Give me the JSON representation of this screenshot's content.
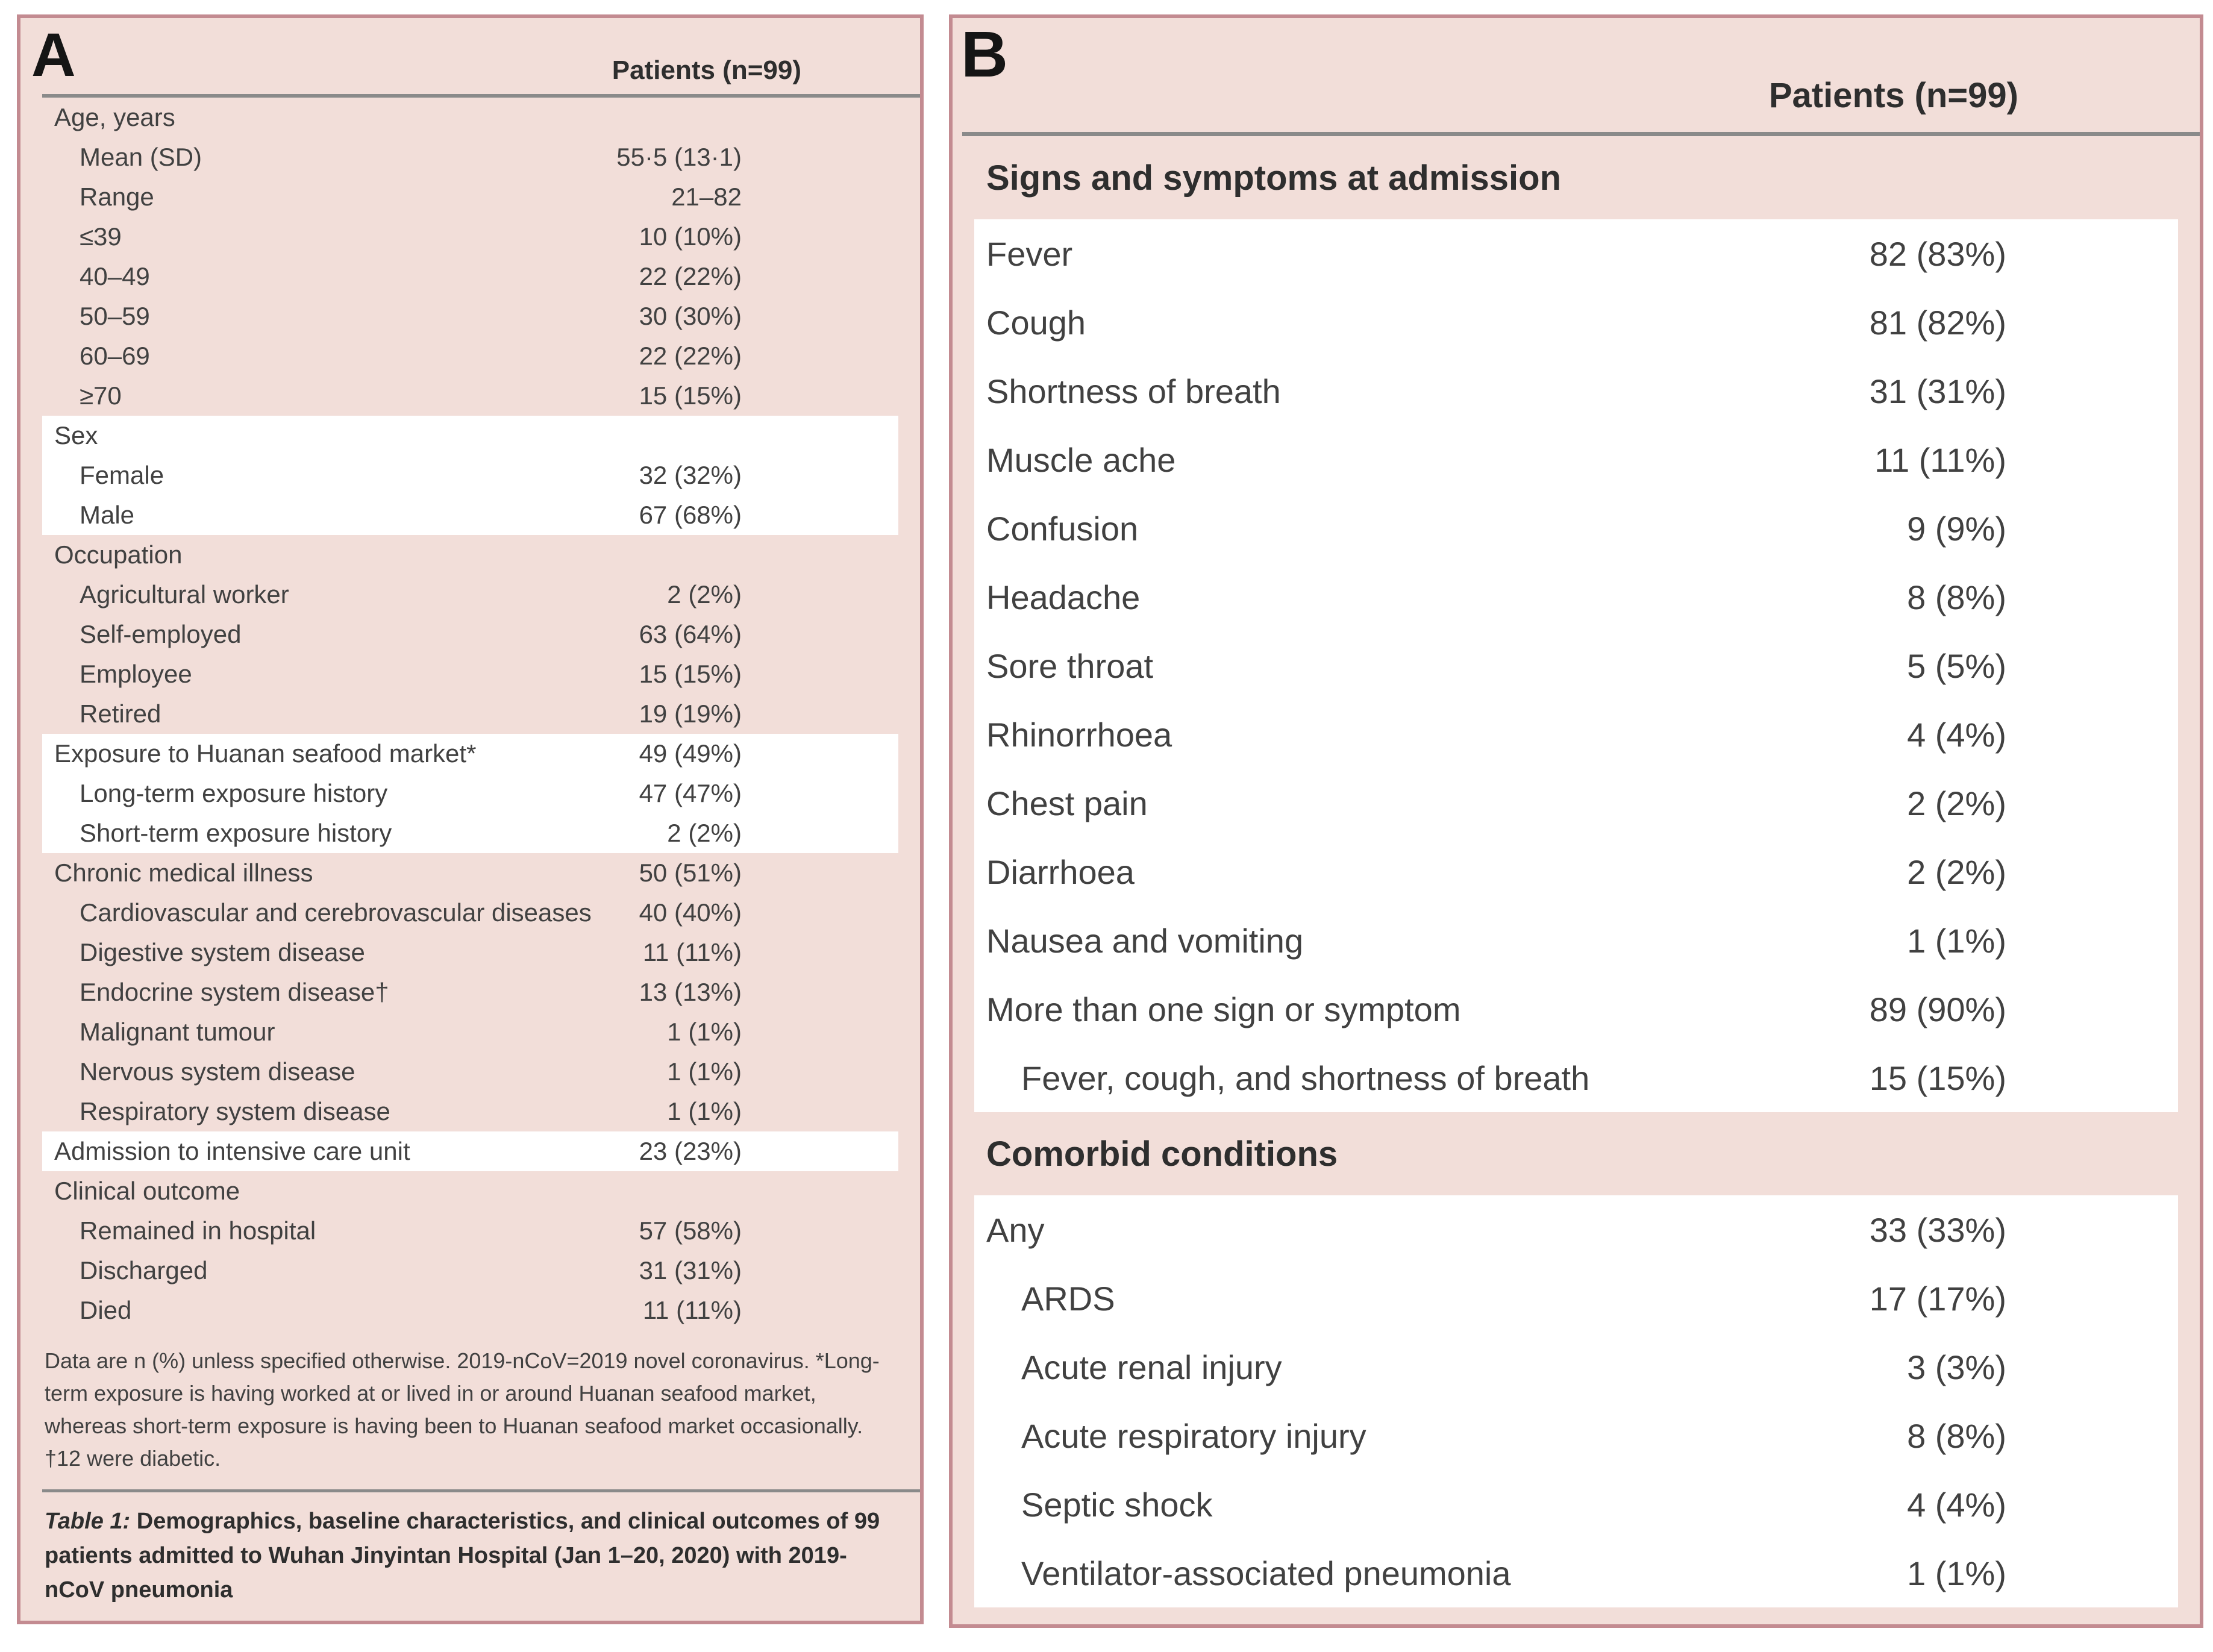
{
  "colors": {
    "panel_bg": "#f2ded9",
    "panel_border": "#c38b91",
    "row_highlight": "#ffffff",
    "rule": "#8a8a8a",
    "text": "#414141",
    "heading": "#2e2e2e"
  },
  "panelA": {
    "label": "A",
    "column_header": "Patients (n=99)",
    "sections": [
      {
        "style": "pink",
        "rows": [
          {
            "label": "Age, years",
            "value": ""
          },
          {
            "label": "Mean (SD)",
            "value": "55·5 (13·1)",
            "indent": true
          },
          {
            "label": "Range",
            "value": "21–82",
            "indent": true
          },
          {
            "label": "≤39",
            "value": "10 (10%)",
            "indent": true
          },
          {
            "label": "40–49",
            "value": "22 (22%)",
            "indent": true
          },
          {
            "label": "50–59",
            "value": "30 (30%)",
            "indent": true
          },
          {
            "label": "60–69",
            "value": "22 (22%)",
            "indent": true
          },
          {
            "label": "≥70",
            "value": "15 (15%)",
            "indent": true
          }
        ]
      },
      {
        "style": "white",
        "rows": [
          {
            "label": "Sex",
            "value": ""
          },
          {
            "label": "Female",
            "value": "32 (32%)",
            "indent": true
          },
          {
            "label": "Male",
            "value": "67 (68%)",
            "indent": true
          }
        ]
      },
      {
        "style": "pink",
        "rows": [
          {
            "label": "Occupation",
            "value": ""
          },
          {
            "label": "Agricultural worker",
            "value": "2 (2%)",
            "indent": true
          },
          {
            "label": "Self-employed",
            "value": "63 (64%)",
            "indent": true
          },
          {
            "label": "Employee",
            "value": "15 (15%)",
            "indent": true
          },
          {
            "label": "Retired",
            "value": "19 (19%)",
            "indent": true
          }
        ]
      },
      {
        "style": "white",
        "rows": [
          {
            "label": "Exposure to Huanan seafood market*",
            "value": "49 (49%)"
          },
          {
            "label": "Long-term exposure history",
            "value": "47 (47%)",
            "indent": true
          },
          {
            "label": "Short-term exposure history",
            "value": "2 (2%)",
            "indent": true
          }
        ]
      },
      {
        "style": "pink",
        "rows": [
          {
            "label": "Chronic medical illness",
            "value": "50 (51%)"
          },
          {
            "label": "Cardiovascular and cerebrovascular diseases",
            "value": "40 (40%)",
            "indent": true
          },
          {
            "label": "Digestive system disease",
            "value": "11 (11%)",
            "indent": true
          },
          {
            "label": "Endocrine system disease†",
            "value": "13 (13%)",
            "indent": true
          },
          {
            "label": "Malignant tumour",
            "value": "1 (1%)",
            "indent": true
          },
          {
            "label": "Nervous system disease",
            "value": "1 (1%)",
            "indent": true
          },
          {
            "label": "Respiratory system disease",
            "value": "1 (1%)",
            "indent": true
          }
        ]
      },
      {
        "style": "white",
        "rows": [
          {
            "label": "Admission to intensive care unit",
            "value": "23 (23%)"
          }
        ]
      },
      {
        "style": "pink",
        "rows": [
          {
            "label": "Clinical outcome",
            "value": ""
          },
          {
            "label": "Remained in hospital",
            "value": "57 (58%)",
            "indent": true
          },
          {
            "label": "Discharged",
            "value": "31 (31%)",
            "indent": true
          },
          {
            "label": "Died",
            "value": "11 (11%)",
            "indent": true
          }
        ]
      }
    ],
    "footnote": "Data are n (%) unless specified otherwise. 2019-nCoV=2019 novel coronavirus. *Long-term exposure is having worked at or lived in or around Huanan seafood market, whereas short-term exposure is having been to Huanan seafood market occasionally. †12 were diabetic.",
    "caption_label": "Table 1:",
    "caption_text": " Demographics, baseline characteristics, and clinical outcomes of 99 patients admitted to Wuhan Jinyintan Hospital (Jan 1–20, 2020) with 2019-nCoV pneumonia"
  },
  "panelB": {
    "label": "B",
    "column_header": "Patients (n=99)",
    "sections": [
      {
        "style": "header",
        "header": "Signs and symptoms at admission"
      },
      {
        "style": "white",
        "rows": [
          {
            "label": "Fever",
            "value": "82 (83%)"
          },
          {
            "label": "Cough",
            "value": "81 (82%)"
          },
          {
            "label": "Shortness of breath",
            "value": "31 (31%)"
          },
          {
            "label": "Muscle ache",
            "value": "11 (11%)"
          },
          {
            "label": "Confusion",
            "value": "9 (9%)"
          },
          {
            "label": "Headache",
            "value": "8 (8%)"
          },
          {
            "label": "Sore throat",
            "value": "5 (5%)"
          },
          {
            "label": "Rhinorrhoea",
            "value": "4 (4%)"
          },
          {
            "label": "Chest pain",
            "value": "2 (2%)"
          },
          {
            "label": "Diarrhoea",
            "value": "2 (2%)"
          },
          {
            "label": "Nausea and vomiting",
            "value": "1 (1%)"
          },
          {
            "label": "More than one sign or symptom",
            "value": "89 (90%)"
          },
          {
            "label": "Fever, cough, and shortness of breath",
            "value": "15 (15%)",
            "indent": true
          }
        ]
      },
      {
        "style": "header",
        "header": "Comorbid conditions"
      },
      {
        "style": "white",
        "rows": [
          {
            "label": "Any",
            "value": "33 (33%)"
          },
          {
            "label": "ARDS",
            "value": "17 (17%)",
            "indent": true
          },
          {
            "label": "Acute renal injury",
            "value": "3 (3%)",
            "indent": true
          },
          {
            "label": "Acute respiratory injury",
            "value": "8 (8%)",
            "indent": true
          },
          {
            "label": "Septic shock",
            "value": "4 (4%)",
            "indent": true
          },
          {
            "label": "Ventilator-associated pneumonia",
            "value": "1 (1%)",
            "indent": true
          }
        ]
      }
    ]
  }
}
